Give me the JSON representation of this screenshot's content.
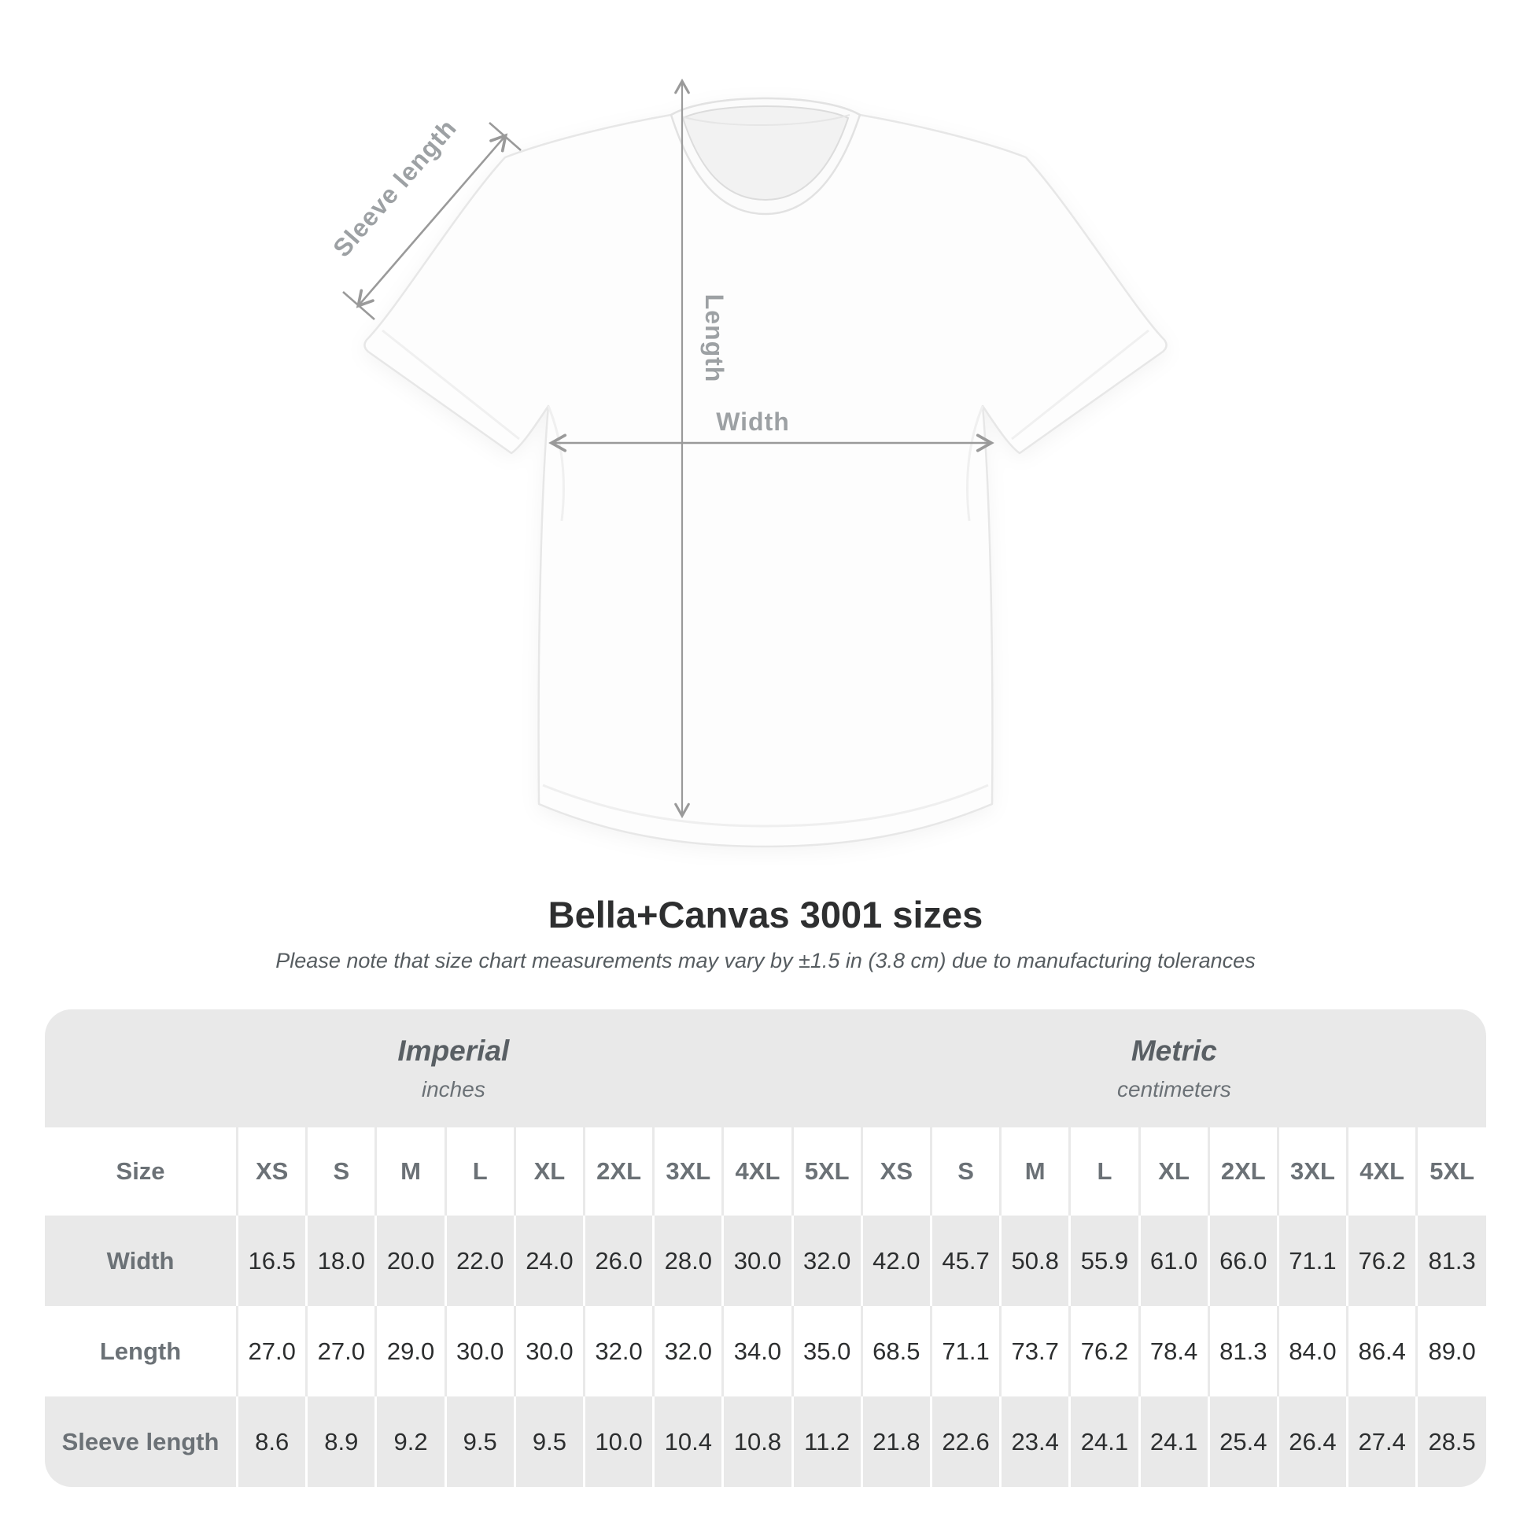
{
  "page": {
    "background": "#ffffff"
  },
  "diagram": {
    "labels": {
      "sleeve_length": "Sleeve length",
      "length": "Length",
      "width": "Width"
    },
    "colors": {
      "arrow": "#9a9a9a",
      "label": "#9da1a4",
      "shirt_fill": "#fdfdfd",
      "shirt_outline": "#e7e7e7"
    }
  },
  "header": {
    "title": "Bella+Canvas 3001 sizes",
    "subtitle": "Please note that size chart measurements may vary by ±1.5 in (3.8 cm) due to manufacturing tolerances"
  },
  "table": {
    "size_label": "Size",
    "sizes": [
      "XS",
      "S",
      "M",
      "L",
      "XL",
      "2XL",
      "3XL",
      "4XL",
      "5XL"
    ],
    "unit_groups": [
      {
        "name": "Imperial",
        "unit": "inches"
      },
      {
        "name": "Metric",
        "unit": "centimeters"
      }
    ],
    "rows": [
      {
        "label": "Width",
        "imperial": [
          "16.5",
          "18.0",
          "20.0",
          "22.0",
          "24.0",
          "26.0",
          "28.0",
          "30.0",
          "32.0"
        ],
        "metric": [
          "42.0",
          "45.7",
          "50.8",
          "55.9",
          "61.0",
          "66.0",
          "71.1",
          "76.2",
          "81.3"
        ]
      },
      {
        "label": "Length",
        "imperial": [
          "27.0",
          "27.0",
          "29.0",
          "30.0",
          "30.0",
          "32.0",
          "32.0",
          "34.0",
          "35.0"
        ],
        "metric": [
          "68.5",
          "71.1",
          "73.7",
          "76.2",
          "78.4",
          "81.3",
          "84.0",
          "86.4",
          "89.0"
        ]
      },
      {
        "label": "Sleeve length",
        "imperial": [
          "8.6",
          "8.9",
          "9.2",
          "9.5",
          "9.5",
          "10.0",
          "10.4",
          "10.8",
          "11.2"
        ],
        "metric": [
          "21.8",
          "22.6",
          "23.4",
          "24.1",
          "24.1",
          "25.4",
          "26.4",
          "27.4",
          "28.5"
        ]
      }
    ],
    "colors": {
      "band": "#e9e9e9",
      "row_shade": "#e9e9e9",
      "header_text": "#6b7176",
      "value_text": "#2c2e2f"
    }
  },
  "chart_data": {
    "type": "table",
    "title": "Bella+Canvas 3001 sizes",
    "note": "Please note that size chart measurements may vary by ±1.5 in (3.8 cm) due to manufacturing tolerances",
    "column_groups": [
      {
        "label": "Imperial",
        "unit": "inches",
        "columns": [
          "XS",
          "S",
          "M",
          "L",
          "XL",
          "2XL",
          "3XL",
          "4XL",
          "5XL"
        ]
      },
      {
        "label": "Metric",
        "unit": "centimeters",
        "columns": [
          "XS",
          "S",
          "M",
          "L",
          "XL",
          "2XL",
          "3XL",
          "4XL",
          "5XL"
        ]
      }
    ],
    "rows": [
      {
        "measurement": "Width",
        "imperial_in": [
          16.5,
          18.0,
          20.0,
          22.0,
          24.0,
          26.0,
          28.0,
          30.0,
          32.0
        ],
        "metric_cm": [
          42.0,
          45.7,
          50.8,
          55.9,
          61.0,
          66.0,
          71.1,
          76.2,
          81.3
        ]
      },
      {
        "measurement": "Length",
        "imperial_in": [
          27.0,
          27.0,
          29.0,
          30.0,
          30.0,
          32.0,
          32.0,
          34.0,
          35.0
        ],
        "metric_cm": [
          68.5,
          71.1,
          73.7,
          76.2,
          78.4,
          81.3,
          84.0,
          86.4,
          89.0
        ]
      },
      {
        "measurement": "Sleeve length",
        "imperial_in": [
          8.6,
          8.9,
          9.2,
          9.5,
          9.5,
          10.0,
          10.4,
          10.8,
          11.2
        ],
        "metric_cm": [
          21.8,
          22.6,
          23.4,
          24.1,
          24.1,
          25.4,
          26.4,
          27.4,
          28.5
        ]
      }
    ]
  }
}
